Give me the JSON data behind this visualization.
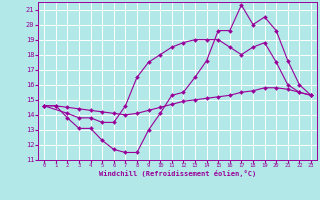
{
  "xlabel": "Windchill (Refroidissement éolien,°C)",
  "bg_color": "#b2e8e8",
  "grid_color": "#ffffff",
  "line_color": "#990099",
  "xlim": [
    -0.5,
    23.5
  ],
  "ylim": [
    11,
    21.5
  ],
  "xticks": [
    0,
    1,
    2,
    3,
    4,
    5,
    6,
    7,
    8,
    9,
    10,
    11,
    12,
    13,
    14,
    15,
    16,
    17,
    18,
    19,
    20,
    21,
    22,
    23
  ],
  "yticks": [
    11,
    12,
    13,
    14,
    15,
    16,
    17,
    18,
    19,
    20,
    21
  ],
  "series1_x": [
    0,
    1,
    2,
    3,
    4,
    5,
    6,
    7,
    8,
    9,
    10,
    11,
    12,
    13,
    14,
    15,
    16,
    17,
    18,
    19,
    20,
    21,
    22,
    23
  ],
  "series1_y": [
    14.6,
    14.6,
    13.8,
    13.1,
    13.1,
    12.3,
    11.7,
    11.5,
    11.5,
    13.0,
    14.1,
    15.3,
    15.5,
    16.5,
    17.6,
    19.6,
    19.6,
    21.3,
    20.0,
    20.5,
    19.6,
    17.6,
    16.0,
    15.3
  ],
  "series2_x": [
    0,
    2,
    3,
    4,
    5,
    6,
    7,
    8,
    9,
    10,
    11,
    12,
    13,
    14,
    15,
    16,
    17,
    18,
    19,
    20,
    21,
    22,
    23
  ],
  "series2_y": [
    14.6,
    14.1,
    13.8,
    13.8,
    13.5,
    13.5,
    14.6,
    16.5,
    17.5,
    18.0,
    18.5,
    18.8,
    19.0,
    19.0,
    19.0,
    18.5,
    18.0,
    18.5,
    18.8,
    17.5,
    16.0,
    15.5,
    15.3
  ],
  "series3_x": [
    0,
    1,
    2,
    3,
    4,
    5,
    6,
    7,
    8,
    9,
    10,
    11,
    12,
    13,
    14,
    15,
    16,
    17,
    18,
    19,
    20,
    21,
    22,
    23
  ],
  "series3_y": [
    14.6,
    14.6,
    14.5,
    14.4,
    14.3,
    14.2,
    14.1,
    14.0,
    14.1,
    14.3,
    14.5,
    14.7,
    14.9,
    15.0,
    15.1,
    15.2,
    15.3,
    15.5,
    15.6,
    15.8,
    15.8,
    15.7,
    15.5,
    15.3
  ]
}
